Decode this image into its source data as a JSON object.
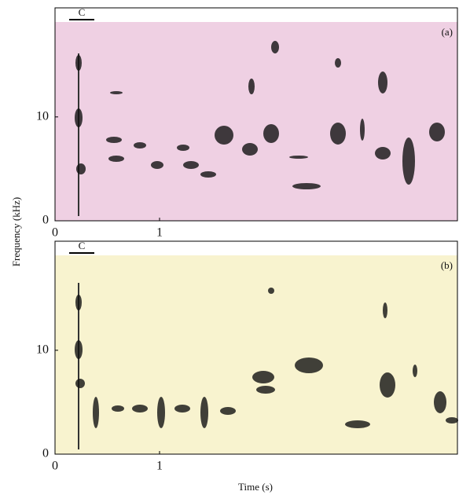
{
  "figure": {
    "x_label": "Time (s)",
    "y_label": "Frequency (kHz)"
  },
  "chart_data": [
    {
      "type": "spectrogram",
      "panel_label": "(a)",
      "annotation": "C",
      "background": "#efd0e3",
      "xlim": [
        0,
        3.85
      ],
      "ylim": [
        0,
        20.5
      ],
      "xticks": [
        0,
        1
      ],
      "yticks": [
        0,
        10
      ]
    },
    {
      "type": "spectrogram",
      "panel_label": "(b)",
      "annotation": "C",
      "background": "#f8f3cf",
      "xlim": [
        0,
        3.85
      ],
      "ylim": [
        0,
        20.5
      ],
      "xticks": [
        0,
        1
      ],
      "yticks": [
        0,
        10
      ]
    }
  ]
}
